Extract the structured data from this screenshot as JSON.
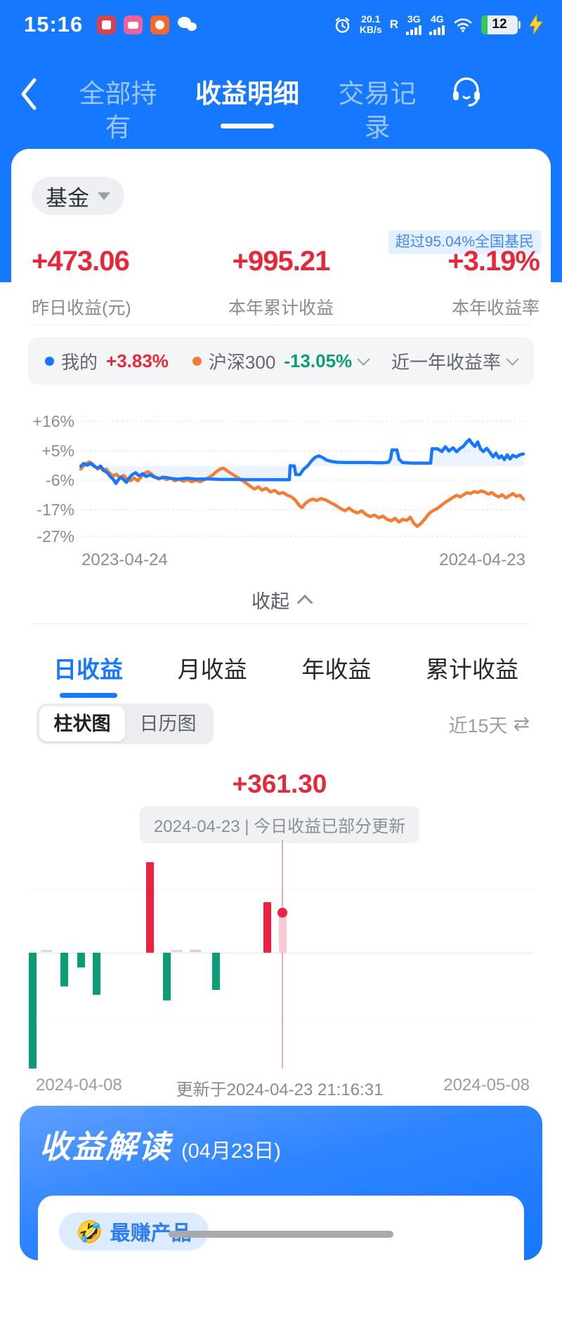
{
  "status_bar": {
    "time": "15:16",
    "speed_value": "20.1",
    "speed_unit": "KB/s",
    "roaming": "R",
    "net_1": "3G",
    "net_2": "4G",
    "battery_percent": "12"
  },
  "nav": {
    "tabs": [
      {
        "label": "全部持有"
      },
      {
        "label": "收益明细"
      },
      {
        "label": "交易记录"
      }
    ]
  },
  "summary": {
    "filter_label": "基金",
    "badge": "超过95.04%全国基民",
    "stats": [
      {
        "value": "+473.06",
        "label": "昨日收益(元)"
      },
      {
        "value": "+995.21",
        "label": "本年累计收益"
      },
      {
        "value": "+3.19%",
        "label": "本年收益率"
      }
    ]
  },
  "legend": {
    "mine_label": "我的",
    "mine_value": "+3.83%",
    "index_label": "沪深300",
    "index_value": "-13.05%",
    "range_label": "近一年收益率"
  },
  "collapse_label": "收起",
  "period_tabs": {
    "items": [
      "日收益",
      "月收益",
      "年收益",
      "累计收益"
    ],
    "active_index": 0
  },
  "view_toggle": {
    "options": [
      "柱状图",
      "日历图"
    ],
    "active_index": 0,
    "range_label": "近15天",
    "swap_icon": "⇄"
  },
  "bar_tooltip": {
    "value": "+361.30",
    "caption": "2024-04-23 | 今日收益已部分更新"
  },
  "bar_axis": {
    "left": "2024-04-08",
    "center": "更新于2024-04-23 21:16:31",
    "right": "2024-05-08"
  },
  "insight": {
    "title": "收益解读",
    "date_suffix": "(04月23日)",
    "pill_emoji": "🤣",
    "pill_label": "最赚产品"
  },
  "colors": {
    "brand_blue": "#1677ff",
    "gain_red": "#e5293b",
    "loss_green": "#0c9d78",
    "bar_red": "#ee2140",
    "bar_green": "#0c9d78",
    "line_blue": "#1777ff",
    "line_orange": "#f57d33"
  },
  "chart_data": [
    {
      "type": "line",
      "title": "近一年收益率",
      "x_labels": [
        "2023-04-24",
        "2024-04-23"
      ],
      "grid": true,
      "legend_position": "top",
      "y_ticks": [
        {
          "label": "+16%",
          "value": 16
        },
        {
          "label": "+5%",
          "value": 5
        },
        {
          "label": "-6%",
          "value": -6
        },
        {
          "label": "-17%",
          "value": -17
        },
        {
          "label": "-27%",
          "value": -27
        }
      ],
      "series": [
        {
          "name": "我的",
          "color": "#1777ff",
          "final_value": "+3.83%",
          "points": [
            [
              115,
              -0.8
            ],
            [
              119,
              0.2
            ],
            [
              124,
              -0.4
            ],
            [
              129,
              0.3
            ],
            [
              134,
              -0.8
            ],
            [
              139,
              -1.5
            ],
            [
              143,
              -0.7
            ],
            [
              148,
              -2.4
            ],
            [
              153,
              -3.2
            ],
            [
              157,
              -4.6
            ],
            [
              161,
              -5.6
            ],
            [
              165,
              -7.2
            ],
            [
              168,
              -6.0
            ],
            [
              172,
              -4.8
            ],
            [
              176,
              -5.8
            ],
            [
              180,
              -6.8
            ],
            [
              184,
              -5.2
            ],
            [
              188,
              -4.0
            ],
            [
              193,
              -3.2
            ],
            [
              198,
              -4.4
            ],
            [
              203,
              -3.6
            ],
            [
              208,
              -4.6
            ],
            [
              214,
              -4.0
            ],
            [
              220,
              -4.9
            ],
            [
              227,
              -5.3
            ],
            [
              235,
              -4.9
            ],
            [
              244,
              -5.4
            ],
            [
              254,
              -5.6
            ],
            [
              266,
              -5.3
            ],
            [
              280,
              -5.6
            ],
            [
              296,
              -5.5
            ],
            [
              314,
              -5.7
            ],
            [
              334,
              -5.7
            ],
            [
              356,
              -5.8
            ],
            [
              380,
              -5.8
            ],
            [
              412,
              -5.8
            ],
            [
              413,
              -0.6
            ],
            [
              419,
              -0.7
            ],
            [
              421,
              -3.9
            ],
            [
              427,
              -3.9
            ],
            [
              432,
              -2.0
            ],
            [
              438,
              -0.6
            ],
            [
              444,
              1.4
            ],
            [
              449,
              2.6
            ],
            [
              454,
              3.1
            ],
            [
              459,
              2.5
            ],
            [
              465,
              1.5
            ],
            [
              472,
              1.0
            ],
            [
              480,
              0.7
            ],
            [
              492,
              0.6
            ],
            [
              508,
              0.6
            ],
            [
              526,
              0.6
            ],
            [
              544,
              0.5
            ],
            [
              553,
              0.7
            ],
            [
              556,
              2.0
            ],
            [
              558,
              5.3
            ],
            [
              565,
              5.3
            ],
            [
              568,
              1.8
            ],
            [
              573,
              0.6
            ],
            [
              586,
              0.4
            ],
            [
              602,
              0.4
            ],
            [
              613,
              0.4
            ],
            [
              615,
              5.7
            ],
            [
              623,
              5.7
            ],
            [
              629,
              4.7
            ],
            [
              634,
              6.5
            ],
            [
              639,
              4.9
            ],
            [
              645,
              6.1
            ],
            [
              650,
              4.6
            ],
            [
              655,
              5.9
            ],
            [
              659,
              6.5
            ],
            [
              664,
              8.1
            ],
            [
              668,
              9.2
            ],
            [
              672,
              7.7
            ],
            [
              676,
              6.6
            ],
            [
              680,
              8.3
            ],
            [
              684,
              5.7
            ],
            [
              688,
              4.7
            ],
            [
              693,
              5.9
            ],
            [
              697,
              4.5
            ],
            [
              702,
              2.7
            ],
            [
              706,
              4.1
            ],
            [
              710,
              2.3
            ],
            [
              714,
              3.1
            ],
            [
              718,
              1.7
            ],
            [
              722,
              3.5
            ],
            [
              726,
              1.9
            ],
            [
              730,
              3.3
            ],
            [
              735,
              2.7
            ],
            [
              740,
              3.5
            ],
            [
              745,
              3.8
            ]
          ]
        },
        {
          "name": "沪深300",
          "color": "#f57d33",
          "final_value": "-13.05%",
          "points": [
            [
              115,
              -1.8
            ],
            [
              119,
              -0.6
            ],
            [
              123,
              0.2
            ],
            [
              127,
              0.8
            ],
            [
              131,
              0.2
            ],
            [
              135,
              -0.8
            ],
            [
              139,
              -1.8
            ],
            [
              143,
              -1.2
            ],
            [
              147,
              -2.4
            ],
            [
              151,
              -1.8
            ],
            [
              156,
              -3.4
            ],
            [
              161,
              -4.4
            ],
            [
              166,
              -3.8
            ],
            [
              171,
              -5.2
            ],
            [
              176,
              -4.2
            ],
            [
              181,
              -5.6
            ],
            [
              186,
              -6.2
            ],
            [
              191,
              -5.2
            ],
            [
              196,
              -6.2
            ],
            [
              201,
              -4.8
            ],
            [
              206,
              -3.4
            ],
            [
              211,
              -2.8
            ],
            [
              216,
              -3.8
            ],
            [
              221,
              -4.8
            ],
            [
              226,
              -5.6
            ],
            [
              231,
              -4.8
            ],
            [
              237,
              -5.8
            ],
            [
              243,
              -5.2
            ],
            [
              249,
              -6.2
            ],
            [
              255,
              -5.6
            ],
            [
              261,
              -6.4
            ],
            [
              267,
              -5.8
            ],
            [
              273,
              -6.6
            ],
            [
              279,
              -6.0
            ],
            [
              285,
              -6.6
            ],
            [
              291,
              -5.8
            ],
            [
              297,
              -5.0
            ],
            [
              303,
              -4.0
            ],
            [
              308,
              -2.8
            ],
            [
              313,
              -1.9
            ],
            [
              318,
              -1.5
            ],
            [
              323,
              -2.4
            ],
            [
              329,
              -3.5
            ],
            [
              336,
              -4.6
            ],
            [
              343,
              -5.8
            ],
            [
              350,
              -7.0
            ],
            [
              356,
              -8.2
            ],
            [
              362,
              -9.3
            ],
            [
              368,
              -8.5
            ],
            [
              373,
              -9.7
            ],
            [
              379,
              -9.0
            ],
            [
              385,
              -10.4
            ],
            [
              391,
              -9.8
            ],
            [
              397,
              -11.0
            ],
            [
              403,
              -10.6
            ],
            [
              409,
              -11.6
            ],
            [
              415,
              -12.2
            ],
            [
              421,
              -13.6
            ],
            [
              426,
              -15.4
            ],
            [
              430,
              -16.2
            ],
            [
              434,
              -14.8
            ],
            [
              439,
              -13.8
            ],
            [
              445,
              -13.0
            ],
            [
              451,
              -13.6
            ],
            [
              457,
              -12.8
            ],
            [
              464,
              -13.4
            ],
            [
              471,
              -14.4
            ],
            [
              478,
              -15.4
            ],
            [
              485,
              -16.6
            ],
            [
              491,
              -17.4
            ],
            [
              497,
              -16.4
            ],
            [
              503,
              -17.6
            ],
            [
              509,
              -18.2
            ],
            [
              515,
              -17.4
            ],
            [
              521,
              -18.8
            ],
            [
              527,
              -19.6
            ],
            [
              533,
              -19.0
            ],
            [
              539,
              -20.0
            ],
            [
              545,
              -19.4
            ],
            [
              551,
              -20.6
            ],
            [
              557,
              -21.2
            ],
            [
              562,
              -20.2
            ],
            [
              568,
              -21.6
            ],
            [
              573,
              -20.6
            ],
            [
              579,
              -21.0
            ],
            [
              584,
              -19.8
            ],
            [
              589,
              -22.0
            ],
            [
              594,
              -23.2
            ],
            [
              599,
              -22.2
            ],
            [
              605,
              -20.4
            ],
            [
              611,
              -18.4
            ],
            [
              616,
              -17.4
            ],
            [
              621,
              -16.8
            ],
            [
              627,
              -15.6
            ],
            [
              633,
              -14.4
            ],
            [
              639,
              -13.4
            ],
            [
              645,
              -12.4
            ],
            [
              650,
              -11.6
            ],
            [
              655,
              -12.2
            ],
            [
              660,
              -11.4
            ],
            [
              665,
              -10.6
            ],
            [
              670,
              -11.0
            ],
            [
              675,
              -10.2
            ],
            [
              680,
              -10.6
            ],
            [
              685,
              -10.0
            ],
            [
              690,
              -10.4
            ],
            [
              695,
              -11.2
            ],
            [
              700,
              -10.6
            ],
            [
              705,
              -11.6
            ],
            [
              710,
              -12.2
            ],
            [
              715,
              -11.4
            ],
            [
              720,
              -12.6
            ],
            [
              725,
              -11.8
            ],
            [
              730,
              -11.0
            ],
            [
              735,
              -12.0
            ],
            [
              740,
              -11.6
            ],
            [
              745,
              -13.05
            ]
          ]
        }
      ]
    },
    {
      "type": "bar",
      "title": "日收益(柱状图)",
      "range": "近15天",
      "selected": {
        "date": "2024-04-23",
        "value": 361.3,
        "note": "今日收益已部分更新"
      },
      "x_axis": {
        "left": "2024-04-08",
        "right": "2024-05-08"
      },
      "updated": "更新于2024-04-23 21:16:31",
      "bars": [
        {
          "x": 46,
          "value": -1046,
          "kind": "neg"
        },
        {
          "x": 66,
          "value": 0,
          "kind": "flat_gray"
        },
        {
          "x": 91,
          "value": -304,
          "kind": "neg"
        },
        {
          "x": 115,
          "value": -133,
          "kind": "neg"
        },
        {
          "x": 137,
          "value": -380,
          "kind": "neg"
        },
        {
          "x": 213,
          "value": 818,
          "kind": "pos"
        },
        {
          "x": 237,
          "value": -431,
          "kind": "neg"
        },
        {
          "x": 252,
          "value": 6,
          "kind": "flat_gray"
        },
        {
          "x": 278,
          "value": 14,
          "kind": "flat_pink"
        },
        {
          "x": 307,
          "value": -336,
          "kind": "neg"
        },
        {
          "x": 380,
          "value": 456,
          "kind": "pos"
        },
        {
          "x": 402,
          "value": 361.3,
          "kind": "selected"
        }
      ]
    }
  ]
}
